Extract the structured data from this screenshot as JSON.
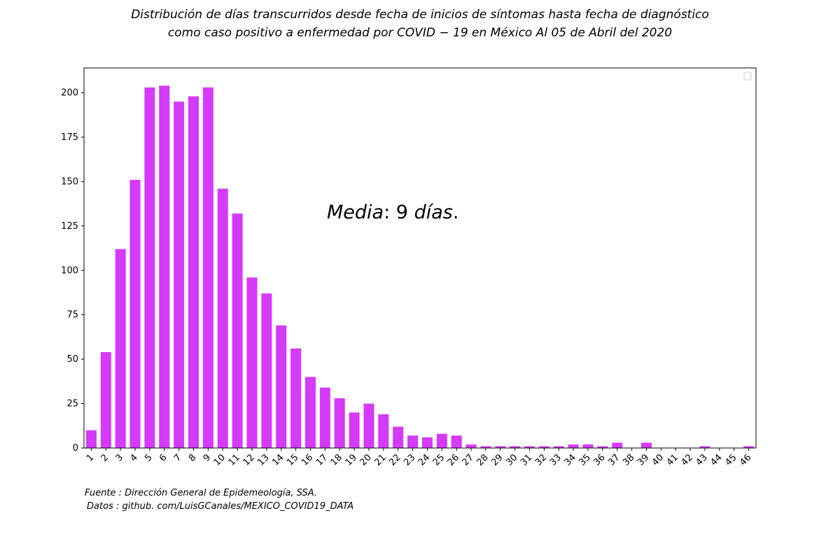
{
  "title_line1": "Distribución de días transcurridos desde fecha de inicios de síntomas hasta fecha de diagnóstico",
  "title_line2": "como caso positivo a enfermedad por COVID − 19 en México Al 05 de Abril del 2020",
  "annotation": {
    "word1": "Media",
    "colon": ":",
    "value": "9",
    "word2": "días",
    "period": "."
  },
  "footer": {
    "source": "Fuente :  Dirección General de Epidemeología, SSA.",
    "data": "Datos :  github. com/LuisGCanales/MEXICO_COVID19_DATA"
  },
  "colors": {
    "bar": "#d63af9",
    "axis": "#000000"
  },
  "chart_data": {
    "type": "bar",
    "categories": [
      "1",
      "2",
      "3",
      "4",
      "5",
      "6",
      "7",
      "8",
      "9",
      "10",
      "11",
      "12",
      "13",
      "14",
      "15",
      "16",
      "17",
      "18",
      "19",
      "20",
      "21",
      "22",
      "23",
      "24",
      "25",
      "26",
      "27",
      "28",
      "29",
      "30",
      "31",
      "32",
      "33",
      "34",
      "35",
      "36",
      "37",
      "38",
      "39",
      "40",
      "41",
      "42",
      "43",
      "44",
      "45",
      "46"
    ],
    "values": [
      10,
      54,
      112,
      151,
      203,
      204,
      195,
      198,
      203,
      146,
      132,
      96,
      87,
      69,
      56,
      40,
      34,
      28,
      20,
      25,
      19,
      12,
      7,
      6,
      8,
      7,
      2,
      1,
      1,
      1,
      1,
      1,
      1,
      2,
      2,
      1,
      3,
      0,
      3,
      0,
      0,
      0,
      1,
      0,
      0,
      1
    ],
    "yticks": [
      0,
      25,
      50,
      75,
      100,
      125,
      150,
      175,
      200
    ],
    "ylim": [
      0,
      214
    ],
    "xlabel": "",
    "ylabel": "",
    "legend": "top-right, empty",
    "grid": false
  }
}
